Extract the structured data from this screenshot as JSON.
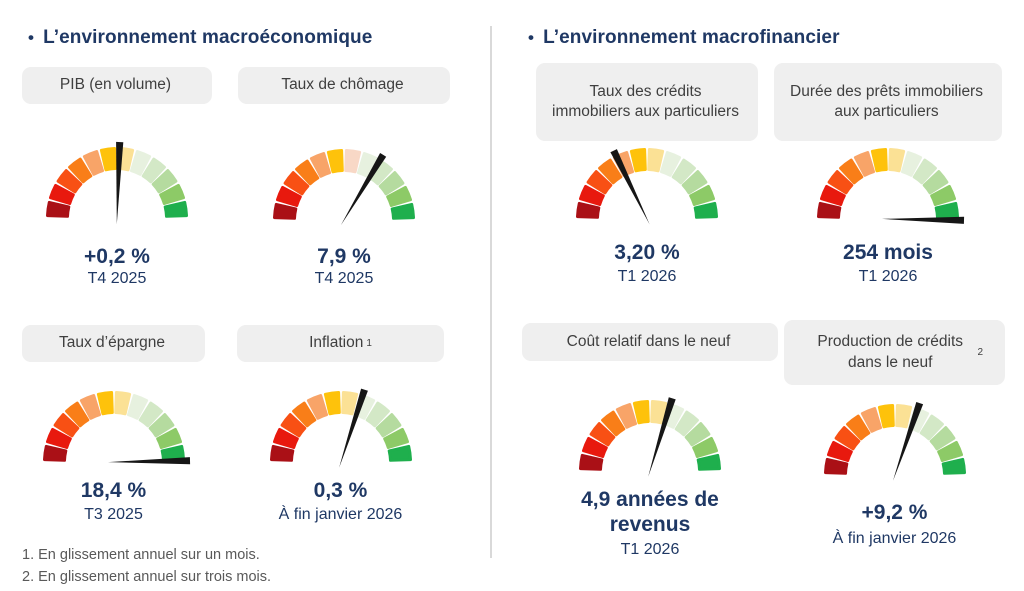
{
  "colors": {
    "title": "#1F3864",
    "value_text": "#1F3864",
    "label_box_bg": "#EFEFEF",
    "label_text": "#3F3F3F",
    "footnote": "#595959",
    "divider": "#D9D9D9",
    "needle": "#161616"
  },
  "gauge_palettes": {
    "default": [
      "#AA1016",
      "#E8190E",
      "#F85014",
      "#F97E18",
      "#F8A468",
      "#FEC20B",
      "#FBE195",
      "#E7F1DF",
      "#D3E8C6",
      "#B5DB9F",
      "#8DCA67",
      "#1FAF4D"
    ],
    "pink7": [
      "#AA1016",
      "#E8190E",
      "#F85014",
      "#F97E18",
      "#F8A468",
      "#FEC20B",
      "#F8D8C6",
      "#E7F1DF",
      "#D3E8C6",
      "#B5DB9F",
      "#8DCA67",
      "#1FAF4D"
    ]
  },
  "sections": [
    {
      "bullet": "•",
      "title": "L’environnement macroéconomique",
      "gauges": [
        {
          "label": "PIB (en volume)",
          "value": "+0,2 %",
          "period": "T4 2025",
          "needle_deg": 2,
          "palette": "default"
        },
        {
          "label": "Taux de chômage",
          "value": "7,9 %",
          "period": "T4 2025",
          "needle_deg": 31,
          "palette": "pink7"
        },
        {
          "label": "Taux d’épargne",
          "value": "18,4 %",
          "period": "T3 2025",
          "needle_deg": 89,
          "palette": "default"
        },
        {
          "label": "Inflation",
          "label_sup": "1",
          "value": "0,3 %",
          "period": "À fin janvier 2026",
          "needle_deg": 18,
          "palette": "default"
        }
      ]
    },
    {
      "bullet": "•",
      "title": "L’environnement macrofinancier",
      "gauges": [
        {
          "label": "Taux des crédits immobiliers aux particuliers",
          "value": "3,20 %",
          "period": "T1 2026",
          "needle_deg": -26,
          "palette": "default"
        },
        {
          "label": "Durée des prêts immobiliers aux particuliers",
          "value": "254 mois",
          "period": "T1 2026",
          "needle_deg": 91,
          "palette": "default"
        },
        {
          "label": "Coût relatif dans le neuf",
          "value": "4,9 années de revenus",
          "period": "T1 2026",
          "needle_deg": 17,
          "palette": "default"
        },
        {
          "label": "Production de crédits dans le neuf",
          "label_sup": "2",
          "value": "+9,2 %",
          "period": "À fin janvier 2026",
          "needle_deg": 19,
          "palette": "default"
        }
      ]
    }
  ],
  "footnotes": [
    "1. En glissement annuel sur un mois.",
    "2. En glissement annuel sur trois mois."
  ],
  "chart_data": {
    "type": "gauge",
    "scale": {
      "shape": "semicircle",
      "sweep_deg": 180,
      "segments": 12,
      "left_end": "rouge (défavorable)",
      "right_end": "vert (favorable)"
    },
    "gauges": [
      {
        "title": "PIB (en volume)",
        "value": 0.2,
        "unit": "%",
        "display": "+0,2 %",
        "period": "T4 2025",
        "needle_deg_from_vertical": 2
      },
      {
        "title": "Taux de chômage",
        "value": 7.9,
        "unit": "%",
        "display": "7,9 %",
        "period": "T4 2025",
        "needle_deg_from_vertical": 31
      },
      {
        "title": "Taux d’épargne",
        "value": 18.4,
        "unit": "%",
        "display": "18,4 %",
        "period": "T3 2025",
        "needle_deg_from_vertical": 89
      },
      {
        "title": "Inflation",
        "value": 0.3,
        "unit": "%",
        "display": "0,3 %",
        "period": "À fin janvier 2026",
        "needle_deg_from_vertical": 18
      },
      {
        "title": "Taux des crédits immobiliers aux particuliers",
        "value": 3.2,
        "unit": "%",
        "display": "3,20 %",
        "period": "T1 2026",
        "needle_deg_from_vertical": -26
      },
      {
        "title": "Durée des prêts immobiliers aux particuliers",
        "value": 254,
        "unit": "mois",
        "display": "254 mois",
        "period": "T1 2026",
        "needle_deg_from_vertical": 91
      },
      {
        "title": "Coût relatif dans le neuf",
        "value": 4.9,
        "unit": "années de revenus",
        "display": "4,9 années de revenus",
        "period": "T1 2026",
        "needle_deg_from_vertical": 17
      },
      {
        "title": "Production de crédits dans le neuf",
        "value": 9.2,
        "unit": "%",
        "display": "+9,2 %",
        "period": "À fin janvier 2026",
        "needle_deg_from_vertical": 19
      }
    ]
  }
}
